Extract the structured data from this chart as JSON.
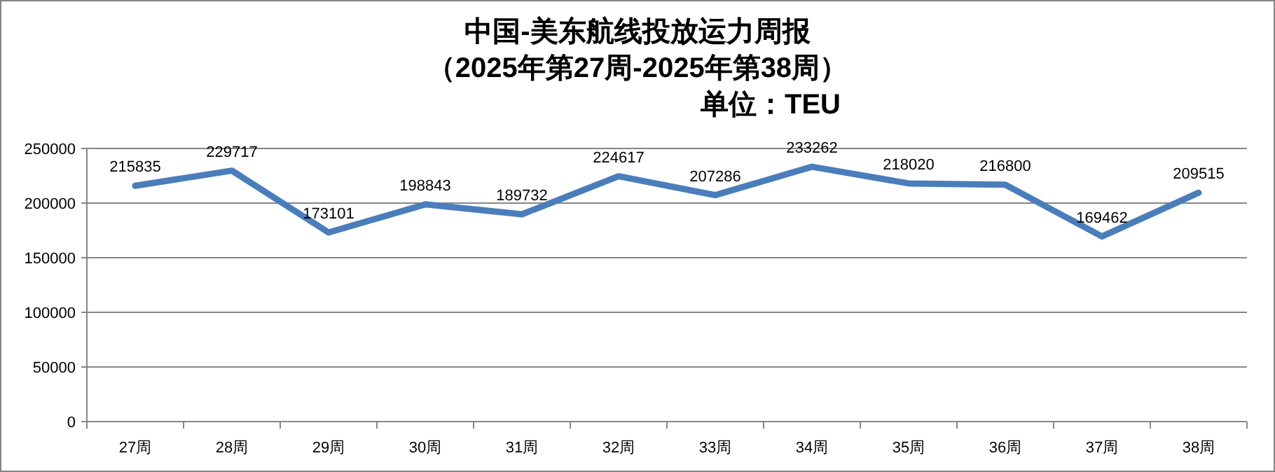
{
  "chart_data": {
    "type": "line",
    "title": "中国-美东航线投放运力周报",
    "subtitle": "（2025年第27周-2025年第38周）",
    "annotations": [
      "单位：TEU"
    ],
    "categories": [
      "27周",
      "28周",
      "29周",
      "30周",
      "31周",
      "32周",
      "33周",
      "34周",
      "35周",
      "36周",
      "37周",
      "38周"
    ],
    "series": [
      {
        "color": "#4a7ebb",
        "values": [
          215835,
          229717,
          173101,
          198843,
          189732,
          224617,
          207286,
          233262,
          218020,
          216800,
          169462,
          209515
        ]
      }
    ],
    "ylim": [
      0,
      250000
    ],
    "yticks": [
      0,
      50000,
      100000,
      150000,
      200000,
      250000
    ],
    "grid": "y",
    "data_labels": true,
    "marker": "none",
    "line_style": "solid"
  }
}
